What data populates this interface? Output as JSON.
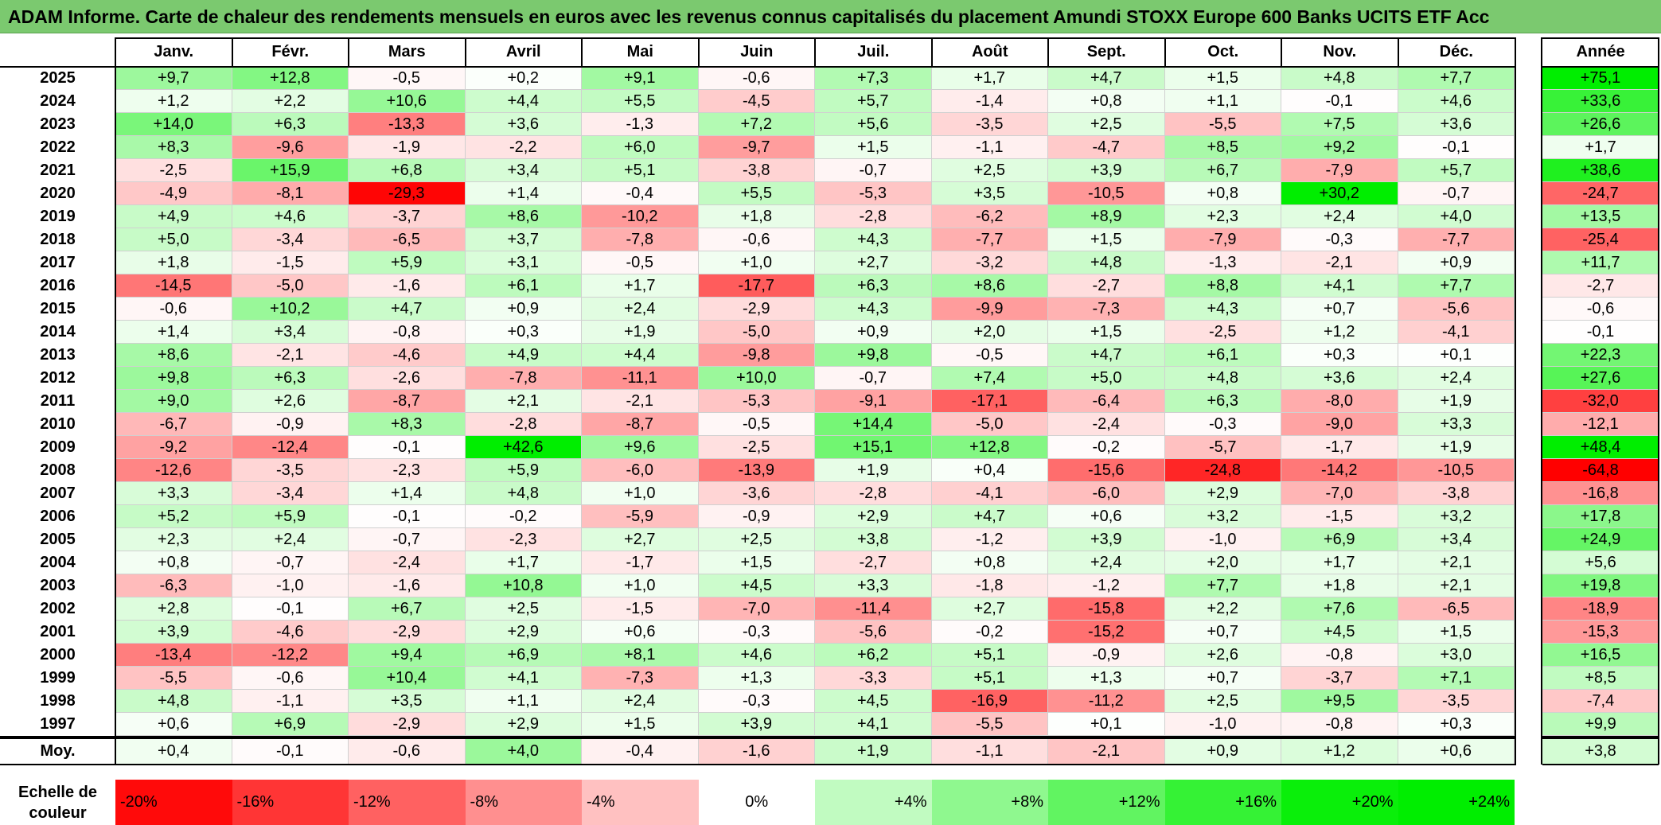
{
  "title": "ADAM Informe. Carte de chaleur des rendements mensuels en euros avec les revenus connus capitalisés du placement Amundi STOXX Europe 600 Banks UCITS ETF Acc",
  "chart_data": {
    "type": "heatmap",
    "title": "ADAM Informe. Carte de chaleur des rendements mensuels en euros avec les revenus connus capitalisés du placement Amundi STOXX Europe 600 Banks UCITS ETF Acc",
    "columns": [
      "Janv.",
      "Févr.",
      "Mars",
      "Avril",
      "Mai",
      "Juin",
      "Juil.",
      "Août",
      "Sept.",
      "Oct.",
      "Nov.",
      "Déc."
    ],
    "year_column_label": "Année",
    "rows": [
      {
        "year": "2025",
        "values": [
          "+9,7",
          "+12,8",
          "-0,5",
          "+0,2",
          "+9,1",
          "-0,6",
          "+7,3",
          "+1,7",
          "+4,7",
          "+1,5",
          "+4,8",
          "+7,7"
        ],
        "annual": "+75,1"
      },
      {
        "year": "2024",
        "values": [
          "+1,2",
          "+2,2",
          "+10,6",
          "+4,4",
          "+5,5",
          "-4,5",
          "+5,7",
          "-1,4",
          "+0,8",
          "+1,1",
          "-0,1",
          "+4,6"
        ],
        "annual": "+33,6"
      },
      {
        "year": "2023",
        "values": [
          "+14,0",
          "+6,3",
          "-13,3",
          "+3,6",
          "-1,3",
          "+7,2",
          "+5,6",
          "-3,5",
          "+2,5",
          "-5,5",
          "+7,5",
          "+3,6"
        ],
        "annual": "+26,6"
      },
      {
        "year": "2022",
        "values": [
          "+8,3",
          "-9,6",
          "-1,9",
          "-2,2",
          "+6,0",
          "-9,7",
          "+1,5",
          "-1,1",
          "-4,7",
          "+8,5",
          "+9,2",
          "-0,1"
        ],
        "annual": "+1,7"
      },
      {
        "year": "2021",
        "values": [
          "-2,5",
          "+15,9",
          "+6,8",
          "+3,4",
          "+5,1",
          "-3,8",
          "-0,7",
          "+2,5",
          "+3,9",
          "+6,7",
          "-7,9",
          "+5,7"
        ],
        "annual": "+38,6"
      },
      {
        "year": "2020",
        "values": [
          "-4,9",
          "-8,1",
          "-29,3",
          "+1,4",
          "-0,4",
          "+5,5",
          "-5,3",
          "+3,5",
          "-10,5",
          "+0,8",
          "+30,2",
          "-0,7"
        ],
        "annual": "-24,7"
      },
      {
        "year": "2019",
        "values": [
          "+4,9",
          "+4,6",
          "-3,7",
          "+8,6",
          "-10,2",
          "+1,8",
          "-2,8",
          "-6,2",
          "+8,9",
          "+2,3",
          "+2,4",
          "+4,0"
        ],
        "annual": "+13,5"
      },
      {
        "year": "2018",
        "values": [
          "+5,0",
          "-3,4",
          "-6,5",
          "+3,7",
          "-7,8",
          "-0,6",
          "+4,3",
          "-7,7",
          "+1,5",
          "-7,9",
          "-0,3",
          "-7,7"
        ],
        "annual": "-25,4"
      },
      {
        "year": "2017",
        "values": [
          "+1,8",
          "-1,5",
          "+5,9",
          "+3,1",
          "-0,5",
          "+1,0",
          "+2,7",
          "-3,2",
          "+4,8",
          "-1,3",
          "-2,1",
          "+0,9"
        ],
        "annual": "+11,7"
      },
      {
        "year": "2016",
        "values": [
          "-14,5",
          "-5,0",
          "-1,6",
          "+6,1",
          "+1,7",
          "-17,7",
          "+6,3",
          "+8,6",
          "-2,7",
          "+8,8",
          "+4,1",
          "+7,7"
        ],
        "annual": "-2,7"
      },
      {
        "year": "2015",
        "values": [
          "-0,6",
          "+10,2",
          "+4,7",
          "+0,9",
          "+2,4",
          "-2,9",
          "+4,3",
          "-9,9",
          "-7,3",
          "+4,3",
          "+0,7",
          "-5,6"
        ],
        "annual": "-0,6"
      },
      {
        "year": "2014",
        "values": [
          "+1,4",
          "+3,4",
          "-0,8",
          "+0,3",
          "+1,9",
          "-5,0",
          "+0,9",
          "+2,0",
          "+1,5",
          "-2,5",
          "+1,2",
          "-4,1"
        ],
        "annual": "-0,1"
      },
      {
        "year": "2013",
        "values": [
          "+8,6",
          "-2,1",
          "-4,6",
          "+4,9",
          "+4,4",
          "-9,8",
          "+9,8",
          "-0,5",
          "+4,7",
          "+6,1",
          "+0,3",
          "+0,1"
        ],
        "annual": "+22,3"
      },
      {
        "year": "2012",
        "values": [
          "+9,8",
          "+6,3",
          "-2,6",
          "-7,8",
          "-11,1",
          "+10,0",
          "-0,7",
          "+7,4",
          "+5,0",
          "+4,8",
          "+3,6",
          "+2,4"
        ],
        "annual": "+27,6"
      },
      {
        "year": "2011",
        "values": [
          "+9,0",
          "+2,6",
          "-8,7",
          "+2,1",
          "-2,1",
          "-5,3",
          "-9,1",
          "-17,1",
          "-6,4",
          "+6,3",
          "-8,0",
          "+1,9"
        ],
        "annual": "-32,0"
      },
      {
        "year": "2010",
        "values": [
          "-6,7",
          "-0,9",
          "+8,3",
          "-2,8",
          "-8,7",
          "-0,5",
          "+14,4",
          "-5,0",
          "-2,4",
          "-0,3",
          "-9,0",
          "+3,3"
        ],
        "annual": "-12,1"
      },
      {
        "year": "2009",
        "values": [
          "-9,2",
          "-12,4",
          "-0,1",
          "+42,6",
          "+9,6",
          "-2,5",
          "+15,1",
          "+12,8",
          "-0,2",
          "-5,7",
          "-1,7",
          "+1,9"
        ],
        "annual": "+48,4"
      },
      {
        "year": "2008",
        "values": [
          "-12,6",
          "-3,5",
          "-2,3",
          "+5,9",
          "-6,0",
          "-13,9",
          "+1,9",
          "+0,4",
          "-15,6",
          "-24,8",
          "-14,2",
          "-10,5"
        ],
        "annual": "-64,8"
      },
      {
        "year": "2007",
        "values": [
          "+3,3",
          "-3,4",
          "+1,4",
          "+4,8",
          "+1,0",
          "-3,6",
          "-2,8",
          "-4,1",
          "-6,0",
          "+2,9",
          "-7,0",
          "-3,8"
        ],
        "annual": "-16,8"
      },
      {
        "year": "2006",
        "values": [
          "+5,2",
          "+5,9",
          "-0,1",
          "-0,2",
          "-5,9",
          "-0,9",
          "+2,9",
          "+4,7",
          "+0,6",
          "+3,2",
          "-1,5",
          "+3,2"
        ],
        "annual": "+17,8"
      },
      {
        "year": "2005",
        "values": [
          "+2,3",
          "+2,4",
          "-0,7",
          "-2,3",
          "+2,7",
          "+2,5",
          "+3,8",
          "-1,2",
          "+3,9",
          "-1,0",
          "+6,9",
          "+3,4"
        ],
        "annual": "+24,9"
      },
      {
        "year": "2004",
        "values": [
          "+0,8",
          "-0,7",
          "-2,4",
          "+1,7",
          "-1,7",
          "+1,5",
          "-2,7",
          "+0,8",
          "+2,4",
          "+2,0",
          "+1,7",
          "+2,1"
        ],
        "annual": "+5,6"
      },
      {
        "year": "2003",
        "values": [
          "-6,3",
          "-1,0",
          "-1,6",
          "+10,8",
          "+1,0",
          "+4,5",
          "+3,3",
          "-1,8",
          "-1,2",
          "+7,7",
          "+1,8",
          "+2,1"
        ],
        "annual": "+19,8"
      },
      {
        "year": "2002",
        "values": [
          "+2,8",
          "-0,1",
          "+6,7",
          "+2,5",
          "-1,5",
          "-7,0",
          "-11,4",
          "+2,7",
          "-15,8",
          "+2,2",
          "+7,6",
          "-6,5"
        ],
        "annual": "-18,9"
      },
      {
        "year": "2001",
        "values": [
          "+3,9",
          "-4,6",
          "-2,9",
          "+2,9",
          "+0,6",
          "-0,3",
          "-5,6",
          "-0,2",
          "-15,2",
          "+0,7",
          "+4,5",
          "+1,5"
        ],
        "annual": "-15,3"
      },
      {
        "year": "2000",
        "values": [
          "-13,4",
          "-12,2",
          "+9,4",
          "+6,9",
          "+8,1",
          "+4,6",
          "+6,2",
          "+5,1",
          "-0,9",
          "+2,6",
          "-0,8",
          "+3,0"
        ],
        "annual": "+16,5"
      },
      {
        "year": "1999",
        "values": [
          "-5,5",
          "-0,6",
          "+10,4",
          "+4,1",
          "-7,3",
          "+1,3",
          "-3,3",
          "+5,1",
          "+1,3",
          "+0,7",
          "-3,7",
          "+7,1"
        ],
        "annual": "+8,5"
      },
      {
        "year": "1998",
        "values": [
          "+4,8",
          "-1,1",
          "+3,5",
          "+1,1",
          "+2,4",
          "-0,3",
          "+4,5",
          "-16,9",
          "-11,2",
          "+2,5",
          "+9,5",
          "-3,5"
        ],
        "annual": "-7,4"
      },
      {
        "year": "1997",
        "values": [
          "+0,6",
          "+6,9",
          "-2,9",
          "+2,9",
          "+1,5",
          "+3,9",
          "+4,1",
          "-5,5",
          "+0,1",
          "-1,0",
          "-0,8",
          "+0,3"
        ],
        "annual": "+9,9"
      }
    ],
    "average_row": {
      "label": "Moy.",
      "values": [
        "+0,4",
        "-0,1",
        "-0,6",
        "+4,0",
        "-0,4",
        "-1,6",
        "+1,9",
        "-1,1",
        "-2,1",
        "+0,9",
        "+1,2",
        "+0,6"
      ],
      "annual": "+3,8"
    },
    "scale": {
      "label_line1": "Echelle de",
      "label_line2": "couleur",
      "steps": [
        "-20%",
        "-16%",
        "-12%",
        "-8%",
        "-4%",
        "0%",
        "+4%",
        "+8%",
        "+12%",
        "+16%",
        "+20%",
        "+24%"
      ],
      "step_values": [
        -20,
        -16,
        -12,
        -8,
        -4,
        0,
        4,
        8,
        12,
        16,
        20,
        24
      ]
    },
    "colors": {
      "negative_max": "#ff0000",
      "positive_max": "#00ee00",
      "neutral": "#ffffff",
      "title_bar": "#7bc96f"
    }
  }
}
